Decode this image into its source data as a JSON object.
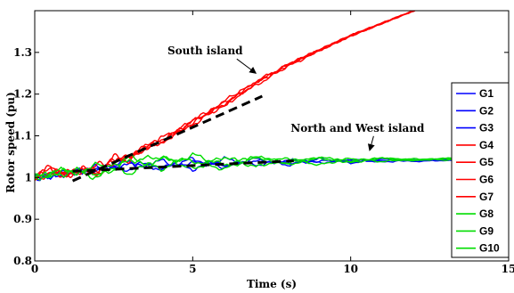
{
  "chart_data": {
    "type": "line",
    "title": "",
    "xlabel": "Time (s)",
    "ylabel": "Rotor speed (pu)",
    "xlim": [
      0,
      15
    ],
    "ylim": [
      0.8,
      1.4
    ],
    "xticks": [
      "0",
      "5",
      "10",
      "15"
    ],
    "yticks": [
      "0.8",
      "0.9",
      "1",
      "1.1",
      "1.2",
      "1.3"
    ],
    "xtick_values": [
      0,
      5,
      10,
      15
    ],
    "ytick_values": [
      0.8,
      0.9,
      1.0,
      1.1,
      1.2,
      1.3
    ],
    "grid": false,
    "legend_position": "right",
    "colors": {
      "south": "#ff0000",
      "north": "#0000ff",
      "west": "#00dd00",
      "trend": "#000000"
    },
    "series": [
      {
        "name": "G1",
        "group": "north",
        "color": "#0000ff",
        "x": [
          0,
          1,
          2,
          3,
          4,
          5,
          6,
          7,
          8,
          9,
          10,
          11,
          12,
          13,
          14,
          15
        ],
        "y": [
          1.0,
          1.01,
          1.02,
          1.03,
          1.025,
          1.035,
          1.03,
          1.04,
          1.035,
          1.04,
          1.04,
          1.042,
          1.04,
          1.042,
          1.043,
          1.043
        ]
      },
      {
        "name": "G2",
        "group": "north",
        "color": "#0000ff",
        "x": [
          0,
          1,
          2,
          3,
          4,
          5,
          6,
          7,
          8,
          9,
          10,
          11,
          12,
          13,
          14,
          15
        ],
        "y": [
          1.0,
          1.012,
          1.018,
          1.04,
          1.02,
          1.045,
          1.025,
          1.045,
          1.03,
          1.045,
          1.035,
          1.045,
          1.038,
          1.044,
          1.042,
          1.043
        ]
      },
      {
        "name": "G3",
        "group": "north",
        "color": "#0000ff",
        "x": [
          0,
          1,
          2,
          3,
          4,
          5,
          6,
          7,
          8,
          9,
          10,
          11,
          12,
          13,
          14,
          15
        ],
        "y": [
          1.0,
          1.008,
          1.025,
          1.02,
          1.04,
          1.02,
          1.045,
          1.03,
          1.042,
          1.035,
          1.044,
          1.037,
          1.043,
          1.04,
          1.043,
          1.044
        ]
      },
      {
        "name": "G4",
        "group": "south",
        "color": "#ff0000",
        "x": [
          0,
          0.5,
          1,
          1.5,
          2,
          2.5,
          3,
          3.5,
          4,
          5,
          6,
          7,
          8,
          9,
          10,
          11,
          12,
          13
        ],
        "y": [
          1.0,
          1.02,
          1.01,
          1.015,
          1.02,
          1.04,
          1.05,
          1.07,
          1.09,
          1.13,
          1.18,
          1.23,
          1.27,
          1.305,
          1.34,
          1.37,
          1.4,
          1.43
        ]
      },
      {
        "name": "G5",
        "group": "south",
        "color": "#ff0000",
        "x": [
          0,
          0.5,
          1,
          1.5,
          2,
          2.5,
          3,
          3.5,
          4,
          5,
          6,
          7,
          8,
          9,
          10,
          11,
          12,
          13
        ],
        "y": [
          1.0,
          1.015,
          1.005,
          1.02,
          1.01,
          1.045,
          1.045,
          1.075,
          1.085,
          1.135,
          1.175,
          1.225,
          1.27,
          1.305,
          1.34,
          1.37,
          1.4,
          1.43
        ]
      },
      {
        "name": "G6",
        "group": "south",
        "color": "#ff0000",
        "x": [
          0,
          0.5,
          1,
          1.5,
          2,
          2.5,
          3,
          3.5,
          4,
          5,
          6,
          7,
          8,
          9,
          10,
          11,
          12,
          13
        ],
        "y": [
          1.0,
          1.01,
          1.015,
          1.01,
          1.03,
          1.035,
          1.055,
          1.065,
          1.095,
          1.125,
          1.185,
          1.22,
          1.27,
          1.305,
          1.34,
          1.37,
          1.4,
          1.43
        ]
      },
      {
        "name": "G7",
        "group": "south",
        "color": "#ff0000",
        "x": [
          0,
          0.5,
          1,
          1.5,
          2,
          2.5,
          3,
          3.5,
          4,
          5,
          6,
          7,
          8,
          9,
          10,
          11,
          12,
          13
        ],
        "y": [
          1.0,
          1.025,
          1.0,
          1.025,
          1.005,
          1.05,
          1.04,
          1.08,
          1.08,
          1.14,
          1.17,
          1.23,
          1.265,
          1.305,
          1.34,
          1.37,
          1.4,
          1.43
        ]
      },
      {
        "name": "G8",
        "group": "west",
        "color": "#00dd00",
        "x": [
          0,
          1,
          2,
          3,
          4,
          5,
          6,
          7,
          8,
          9,
          10,
          11,
          12,
          13,
          14,
          15
        ],
        "y": [
          1.0,
          1.015,
          1.01,
          1.05,
          1.02,
          1.055,
          1.03,
          1.05,
          1.03,
          1.05,
          1.035,
          1.048,
          1.04,
          1.046,
          1.044,
          1.045
        ]
      },
      {
        "name": "G9",
        "group": "west",
        "color": "#00dd00",
        "x": [
          0,
          1,
          2,
          3,
          4,
          5,
          6,
          7,
          8,
          9,
          10,
          11,
          12,
          13,
          14,
          15
        ],
        "y": [
          1.0,
          1.02,
          1.0,
          1.04,
          1.05,
          1.02,
          1.05,
          1.025,
          1.048,
          1.03,
          1.046,
          1.038,
          1.045,
          1.042,
          1.045,
          1.045
        ]
      },
      {
        "name": "G10",
        "group": "west",
        "color": "#00dd00",
        "x": [
          0,
          1,
          2,
          3,
          4,
          5,
          6,
          7,
          8,
          9,
          10,
          11,
          12,
          13,
          14,
          15
        ],
        "y": [
          1.0,
          1.01,
          1.03,
          1.01,
          1.045,
          1.04,
          1.02,
          1.05,
          1.035,
          1.045,
          1.04,
          1.046,
          1.042,
          1.046,
          1.044,
          1.046
        ]
      }
    ],
    "trend_lines": [
      {
        "label": "South island trend",
        "x": [
          1.2,
          7.2
        ],
        "y": [
          0.992,
          1.195
        ]
      },
      {
        "label": "North and West island trend",
        "x": [
          1.2,
          8.2
        ],
        "y": [
          1.015,
          1.04
        ]
      }
    ],
    "annotations": [
      {
        "text": "South island",
        "x": 4.2,
        "y": 1.295,
        "arrow_to": [
          7.0,
          1.25
        ]
      },
      {
        "text": "North and West island",
        "x": 8.1,
        "y": 1.11,
        "arrow_to": [
          10.6,
          1.065
        ]
      }
    ]
  }
}
